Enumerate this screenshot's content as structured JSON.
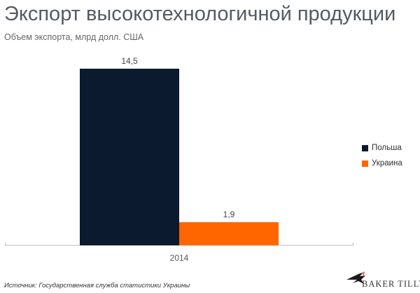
{
  "chart_data": {
    "type": "bar",
    "title": "Экспорт высокотехнологичной продукции",
    "subtitle": "Объем экспорта, млрд долл. США",
    "categories": [
      "2014"
    ],
    "series": [
      {
        "name": "Польша",
        "values": [
          14.5
        ],
        "labels": [
          "14,5"
        ],
        "color": "#0b1a2e"
      },
      {
        "name": "Украина",
        "values": [
          1.9
        ],
        "labels": [
          "1,9"
        ],
        "color": "#ff6600"
      }
    ],
    "ylim": [
      0,
      14.5
    ],
    "grid": false,
    "legend": "right"
  },
  "source": "Источник:  Государственная  служба  статистики Украины",
  "logo_text": "BAKER TILLY"
}
